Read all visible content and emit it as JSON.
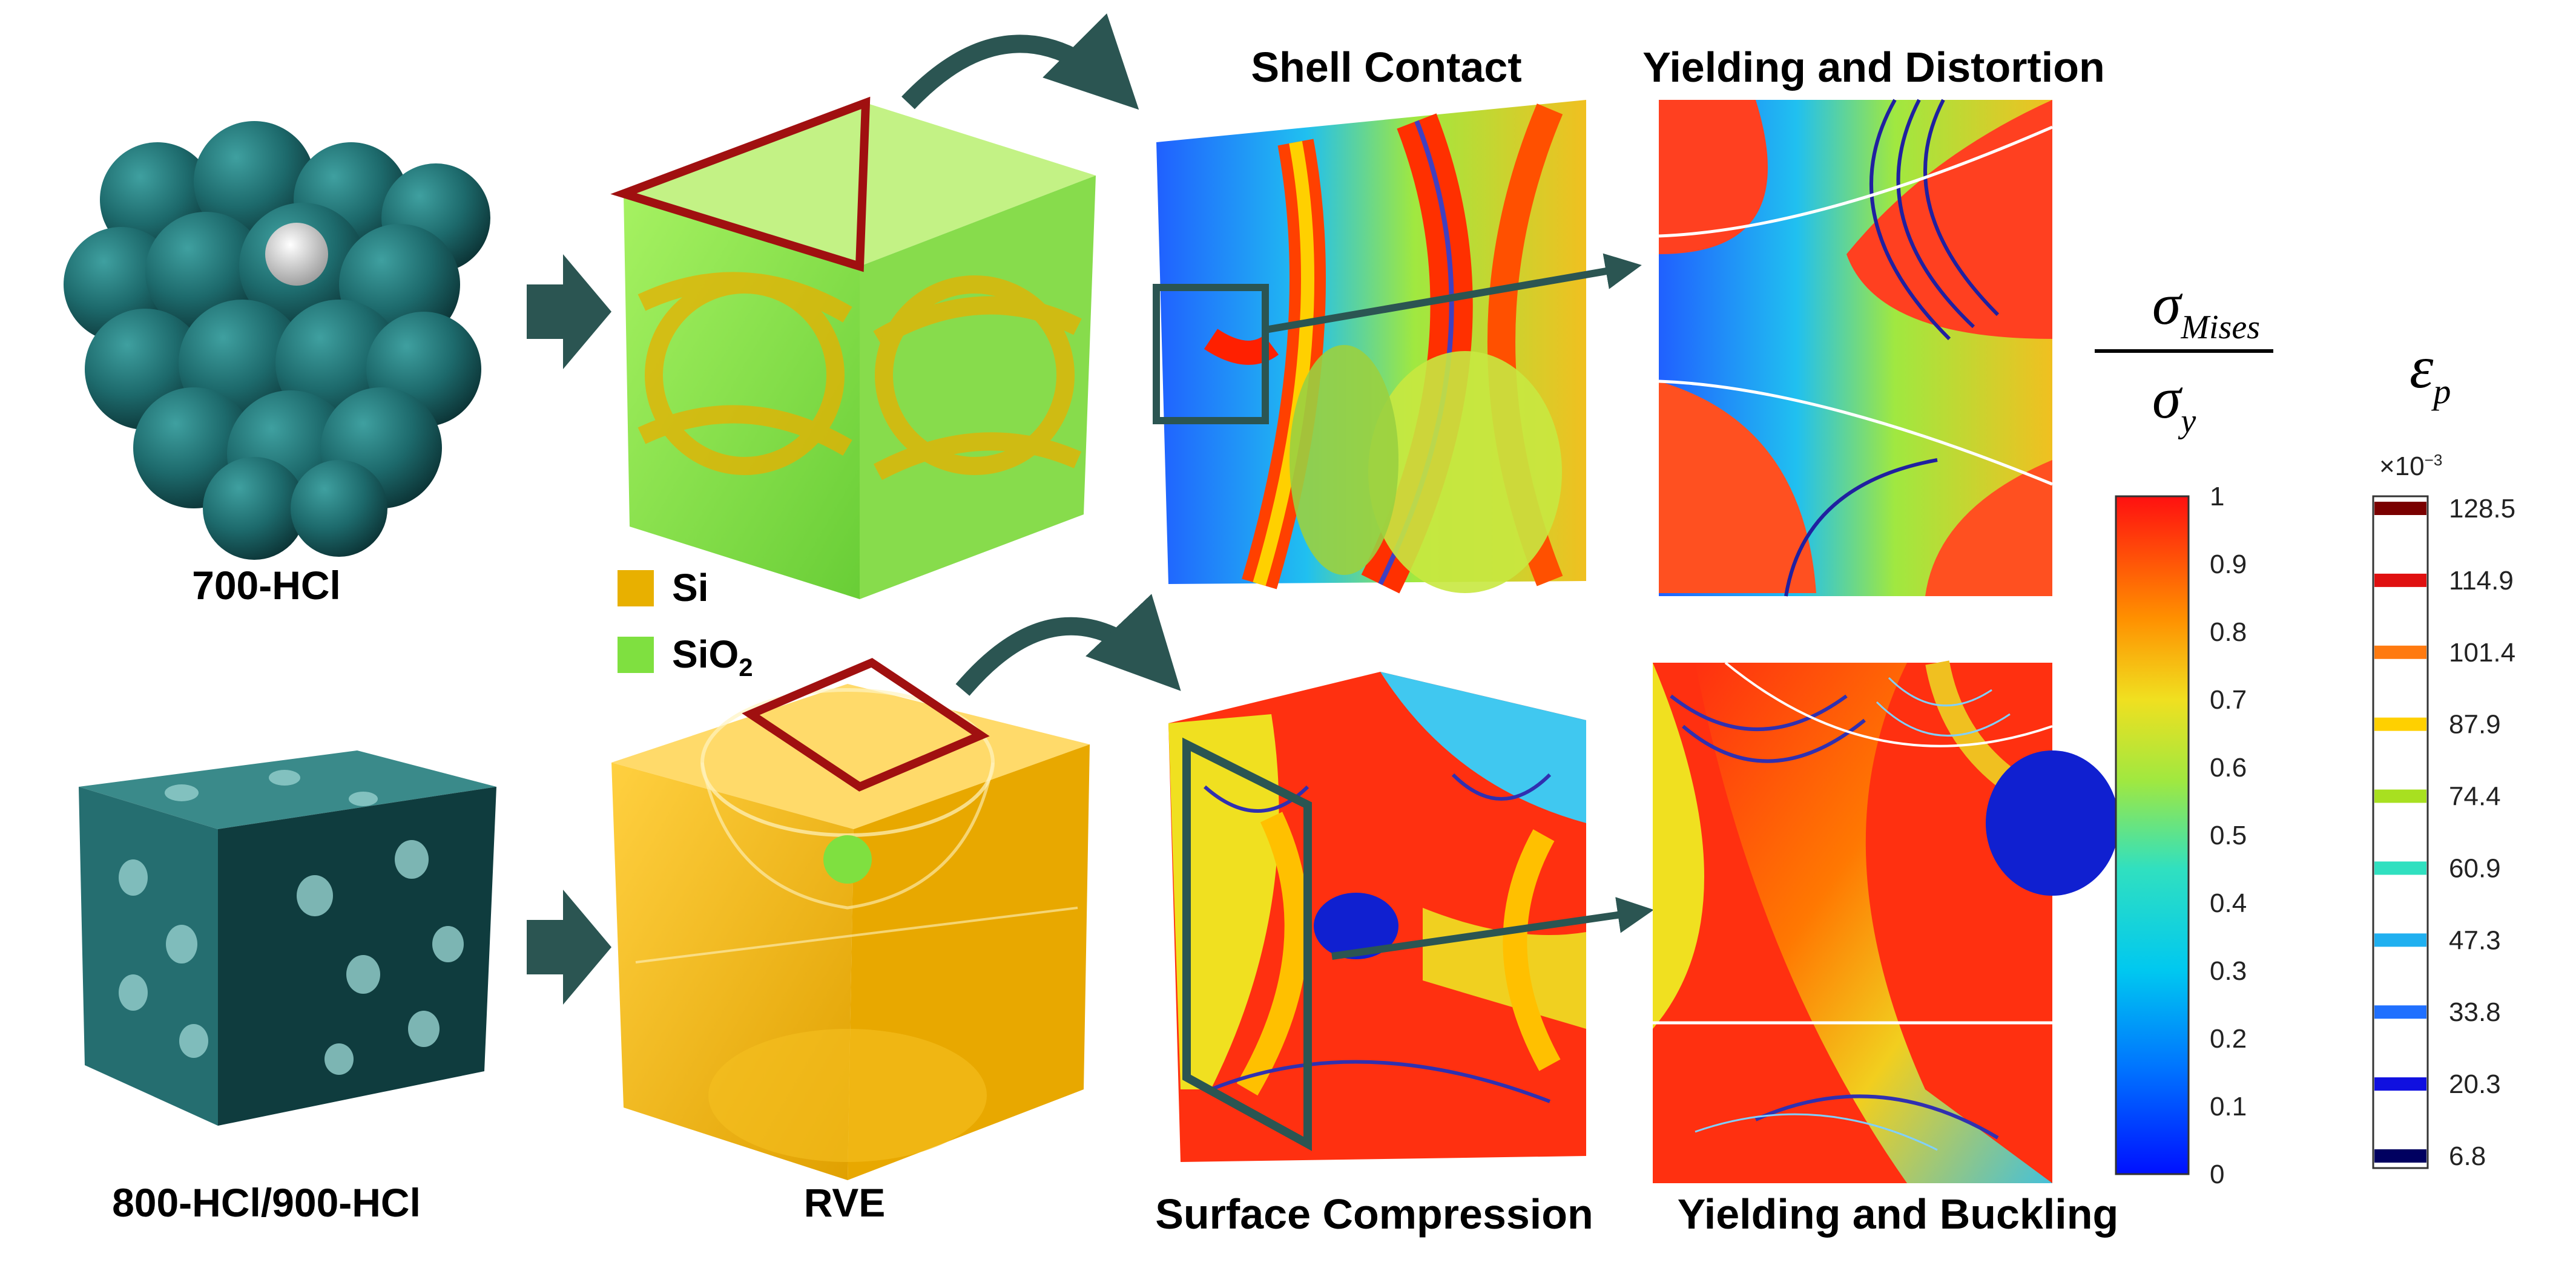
{
  "labels": {
    "sample_top": "700-HCl",
    "sample_bottom": "800-HCl/900-HCl",
    "rve": "RVE",
    "shell_contact": "Shell Contact",
    "yielding_distortion": "Yielding and Distortion",
    "surface_compression": "Surface Compression",
    "yielding_buckling": "Yielding and Buckling"
  },
  "legend": {
    "si": "Si",
    "sio2_base": "SiO",
    "sio2_sub": "2"
  },
  "colorbar_mises": {
    "numerator": "σ",
    "numerator_sub": "Mises",
    "denominator": "σ",
    "denominator_sub": "y",
    "ticks": [
      "1",
      "0.9",
      "0.8",
      "0.7",
      "0.6",
      "0.5",
      "0.4",
      "0.3",
      "0.2",
      "0.1",
      "0"
    ]
  },
  "colorbar_strain": {
    "symbol": "ε",
    "symbol_sub": "p",
    "multiplier_base": "×10",
    "multiplier_exp": "−3",
    "ticks": [
      "128.5",
      "114.9",
      "101.4",
      "87.9",
      "74.4",
      "60.9",
      "47.3",
      "33.8",
      "20.3",
      "6.8"
    ],
    "tick_colors": [
      "#7a0000",
      "#e01010",
      "#ff7a10",
      "#ffd000",
      "#a8e020",
      "#30e0c0",
      "#20b0f0",
      "#2070ff",
      "#1010e0",
      "#000060"
    ]
  },
  "colors": {
    "arrow": "#2b5552",
    "triangle_outline": "#a01010",
    "si": "#e8b000",
    "sio2": "#7fe040"
  }
}
